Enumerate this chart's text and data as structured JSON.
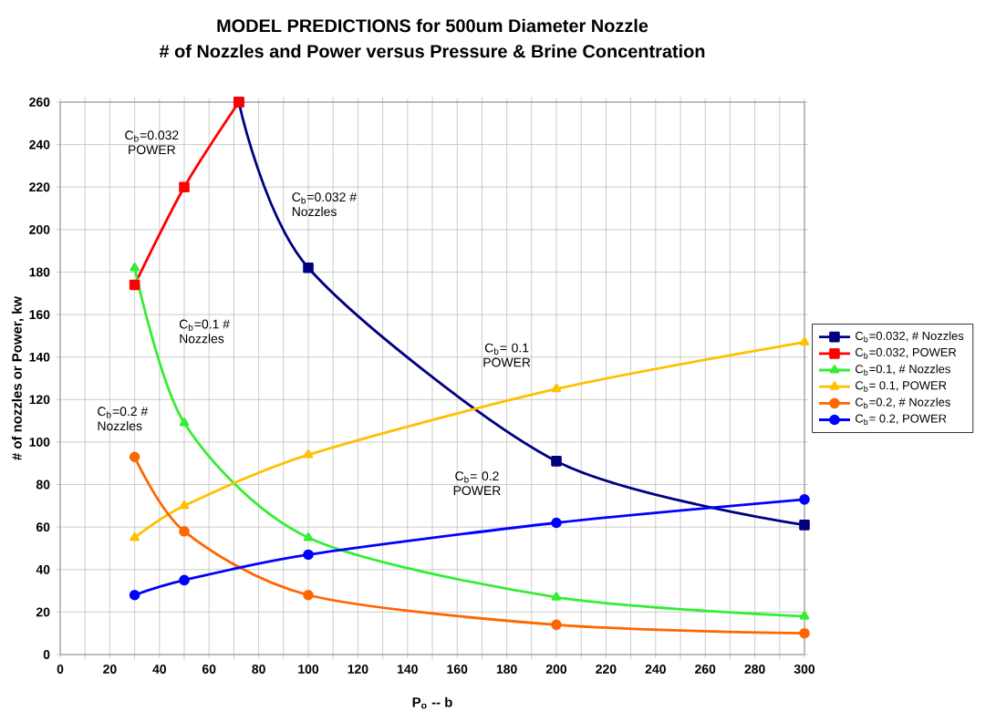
{
  "chart_data": {
    "type": "line",
    "title": "MODEL PREDICTIONS for 500um Diameter Nozzle",
    "subtitle": "# of Nozzles and Power versus Pressure & Brine Concentration",
    "xlabel": "P$_{o}$ -- b",
    "ylabel": "# of nozzles or Power, kw",
    "xlim": [
      0,
      300
    ],
    "ylim": [
      0,
      260
    ],
    "xticks": [
      0,
      20,
      40,
      60,
      80,
      100,
      120,
      140,
      160,
      180,
      200,
      220,
      240,
      260,
      280,
      300
    ],
    "yticks": [
      0,
      20,
      40,
      60,
      80,
      100,
      120,
      140,
      160,
      180,
      200,
      220,
      240,
      260
    ],
    "grid": true,
    "legend": "right",
    "series": [
      {
        "name": "C$_{b}$=0.032, # Nozzles",
        "color": "#000080",
        "marker": "square",
        "x": [
          72,
          100,
          200,
          300
        ],
        "values": [
          260,
          182,
          91,
          61
        ]
      },
      {
        "name": "C$_{b}$=0.032, POWER",
        "color": "#ff0000",
        "marker": "square",
        "x": [
          30,
          50,
          72
        ],
        "values": [
          174,
          220,
          260
        ]
      },
      {
        "name": "C$_{b}$=0.1, # Nozzles",
        "color": "#33ee33",
        "marker": "triangle",
        "x": [
          30,
          50,
          100,
          200,
          300
        ],
        "values": [
          182,
          109,
          55,
          27,
          18
        ]
      },
      {
        "name": "C$_{b}$= 0.1, POWER",
        "color": "#ffc000",
        "marker": "triangle",
        "x": [
          30,
          50,
          100,
          200,
          300
        ],
        "values": [
          55,
          70,
          94,
          125,
          147
        ]
      },
      {
        "name": "C$_{b}$=0.2, # Nozzles",
        "color": "#ff6600",
        "marker": "circle",
        "x": [
          30,
          50,
          100,
          200,
          300
        ],
        "values": [
          93,
          58,
          28,
          14,
          10
        ]
      },
      {
        "name": "C$_{b}$= 0.2, POWER",
        "color": "#0000ff",
        "marker": "circle",
        "x": [
          30,
          50,
          100,
          200,
          300
        ],
        "values": [
          28,
          35,
          47,
          62,
          73
        ]
      }
    ],
    "annotations": [
      "C$_{b}$=0.032 POWER",
      "C$_{b}$=0.032 # Nozzles",
      "C$_{b}$=0.1 # Nozzles",
      "C$_{b}$= 0.1 POWER",
      "C$_{b}$=0.2 # Nozzles",
      "C$_{b}$= 0.2 POWER"
    ]
  }
}
